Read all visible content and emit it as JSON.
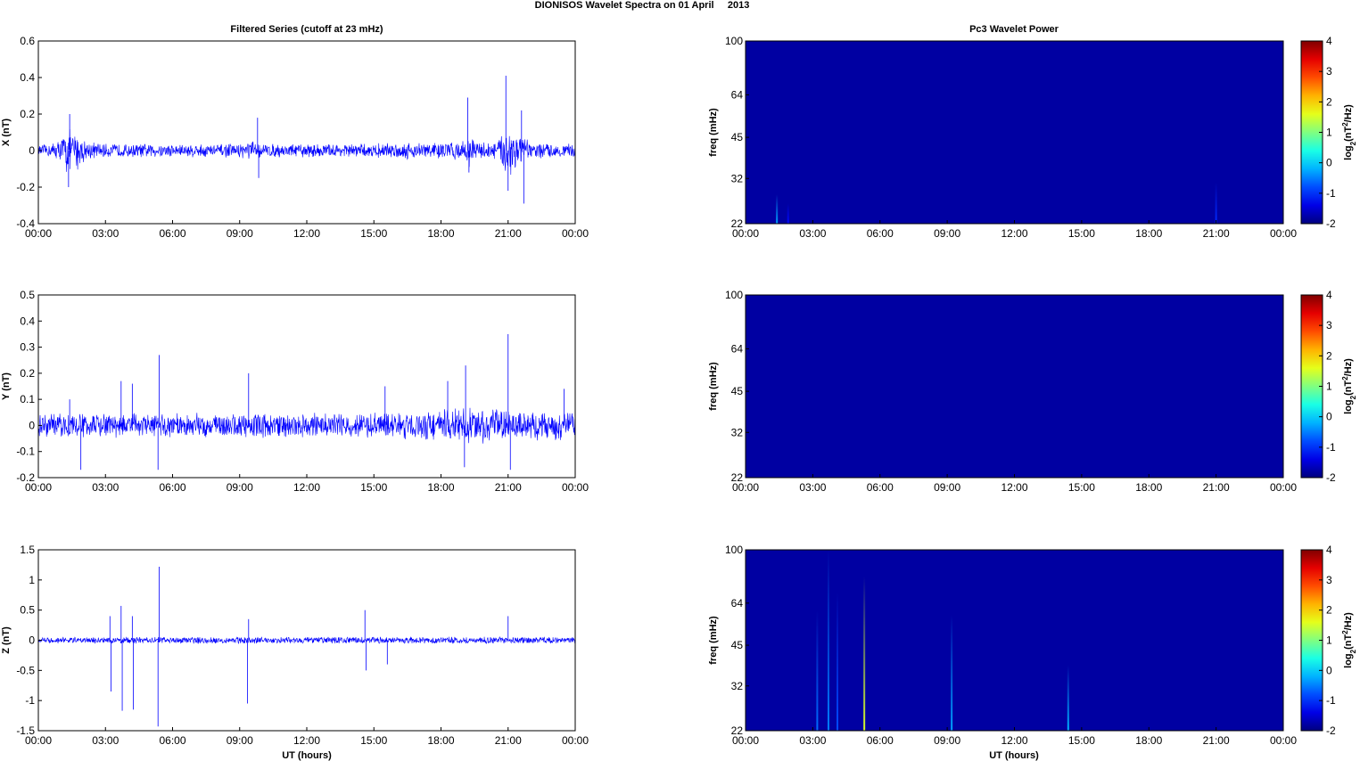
{
  "figure": {
    "title": "DIONISOS Wavelet Spectra on 01 April     2013",
    "left_column_title": "Filtered Series (cutoff at 23 mHz)",
    "right_column_title": "Pc3 Wavelet Power",
    "x_axis_label": "UT (hours)"
  },
  "colors": {
    "series_line": "#0000ff",
    "spectrogram_background": "#00008f",
    "axis": "#000000"
  },
  "chart_data": [
    {
      "type": "line",
      "panel": "x-series",
      "ylabel": "X (nT)",
      "ylim": [
        -0.4,
        0.6
      ],
      "yticks": [
        "-0.4",
        "-0.2",
        "0",
        "0.2",
        "0.4",
        "0.6"
      ],
      "xticks": [
        "00:00",
        "03:00",
        "06:00",
        "09:00",
        "12:00",
        "15:00",
        "18:00",
        "21:00",
        "00:00"
      ],
      "xlim_hours": [
        0,
        24
      ],
      "grid": false,
      "envelope": {
        "x_hours": [
          0,
          0.5,
          1,
          1.3,
          1.5,
          1.8,
          2,
          2.5,
          3,
          4,
          5,
          6,
          7,
          8,
          9,
          9.5,
          10,
          11,
          12,
          13,
          14,
          15,
          16,
          17,
          18,
          19,
          19.2,
          19.5,
          20,
          20.5,
          21,
          21.2,
          21.5,
          22,
          23,
          24
        ],
        "amplitude_nT": [
          0.03,
          0.04,
          0.07,
          0.15,
          0.1,
          0.12,
          0.07,
          0.05,
          0.04,
          0.04,
          0.04,
          0.04,
          0.04,
          0.04,
          0.04,
          0.06,
          0.04,
          0.04,
          0.04,
          0.04,
          0.04,
          0.04,
          0.05,
          0.05,
          0.05,
          0.06,
          0.1,
          0.06,
          0.05,
          0.06,
          0.15,
          0.2,
          0.1,
          0.05,
          0.04,
          0.04
        ]
      },
      "spikes": [
        {
          "x_hours": 1.4,
          "y_nT": 0.2
        },
        {
          "x_hours": 1.35,
          "y_nT": -0.2
        },
        {
          "x_hours": 9.8,
          "y_nT": 0.18
        },
        {
          "x_hours": 9.85,
          "y_nT": -0.15
        },
        {
          "x_hours": 19.2,
          "y_nT": 0.29
        },
        {
          "x_hours": 19.25,
          "y_nT": -0.12
        },
        {
          "x_hours": 20.9,
          "y_nT": 0.41
        },
        {
          "x_hours": 21.0,
          "y_nT": -0.22
        },
        {
          "x_hours": 21.6,
          "y_nT": 0.22
        },
        {
          "x_hours": 21.7,
          "y_nT": -0.29
        }
      ]
    },
    {
      "type": "line",
      "panel": "y-series",
      "ylabel": "Y (nT)",
      "ylim": [
        -0.2,
        0.5
      ],
      "yticks": [
        "-0.2",
        "-0.1",
        "0",
        "0.1",
        "0.2",
        "0.3",
        "0.4",
        "0.5"
      ],
      "xticks": [
        "00:00",
        "03:00",
        "06:00",
        "09:00",
        "12:00",
        "15:00",
        "18:00",
        "21:00",
        "00:00"
      ],
      "xlim_hours": [
        0,
        24
      ],
      "grid": false,
      "envelope": {
        "x_hours": [
          0,
          1,
          2,
          3,
          4,
          5,
          6,
          7,
          8,
          9,
          10,
          11,
          12,
          13,
          14,
          15,
          16,
          17,
          18,
          19,
          20,
          21,
          22,
          23,
          24
        ],
        "amplitude_nT": [
          0.045,
          0.05,
          0.05,
          0.05,
          0.05,
          0.05,
          0.05,
          0.05,
          0.05,
          0.05,
          0.05,
          0.05,
          0.05,
          0.05,
          0.05,
          0.05,
          0.055,
          0.06,
          0.065,
          0.07,
          0.07,
          0.065,
          0.06,
          0.06,
          0.06
        ]
      },
      "spikes": [
        {
          "x_hours": 1.4,
          "y_nT": 0.1
        },
        {
          "x_hours": 1.9,
          "y_nT": -0.17
        },
        {
          "x_hours": 3.7,
          "y_nT": 0.17
        },
        {
          "x_hours": 4.2,
          "y_nT": 0.16
        },
        {
          "x_hours": 5.4,
          "y_nT": 0.27
        },
        {
          "x_hours": 5.35,
          "y_nT": -0.17
        },
        {
          "x_hours": 9.4,
          "y_nT": 0.2
        },
        {
          "x_hours": 15.5,
          "y_nT": 0.15
        },
        {
          "x_hours": 18.3,
          "y_nT": 0.17
        },
        {
          "x_hours": 19.1,
          "y_nT": 0.23
        },
        {
          "x_hours": 19.05,
          "y_nT": -0.16
        },
        {
          "x_hours": 21.0,
          "y_nT": 0.35
        },
        {
          "x_hours": 21.1,
          "y_nT": -0.17
        },
        {
          "x_hours": 23.5,
          "y_nT": 0.14
        }
      ]
    },
    {
      "type": "line",
      "panel": "z-series",
      "ylabel": "Z (nT)",
      "ylim": [
        -1.5,
        1.5
      ],
      "yticks": [
        "-1.5",
        "-1",
        "-0.5",
        "0",
        "0.5",
        "1",
        "1.5"
      ],
      "xticks": [
        "00:00",
        "03:00",
        "06:00",
        "09:00",
        "12:00",
        "15:00",
        "18:00",
        "21:00",
        "00:00"
      ],
      "xlim_hours": [
        0,
        24
      ],
      "xlabel": "UT (hours)",
      "grid": false,
      "envelope": {
        "x_hours": [
          0,
          3,
          6,
          9,
          12,
          15,
          18,
          21,
          24
        ],
        "amplitude_nT": [
          0.05,
          0.06,
          0.06,
          0.06,
          0.06,
          0.06,
          0.06,
          0.06,
          0.06
        ]
      },
      "spikes": [
        {
          "x_hours": 3.2,
          "y_nT": 0.4
        },
        {
          "x_hours": 3.25,
          "y_nT": -0.85
        },
        {
          "x_hours": 3.7,
          "y_nT": 0.57
        },
        {
          "x_hours": 3.75,
          "y_nT": -1.17
        },
        {
          "x_hours": 4.2,
          "y_nT": 0.4
        },
        {
          "x_hours": 4.25,
          "y_nT": -1.15
        },
        {
          "x_hours": 5.4,
          "y_nT": 1.22
        },
        {
          "x_hours": 5.35,
          "y_nT": -1.43
        },
        {
          "x_hours": 9.4,
          "y_nT": 0.35
        },
        {
          "x_hours": 9.35,
          "y_nT": -1.05
        },
        {
          "x_hours": 14.6,
          "y_nT": 0.5
        },
        {
          "x_hours": 14.65,
          "y_nT": -0.5
        },
        {
          "x_hours": 15.6,
          "y_nT": -0.4
        },
        {
          "x_hours": 21.0,
          "y_nT": 0.4
        }
      ]
    },
    {
      "type": "heatmap",
      "panel": "x-power",
      "ylabel": "freq (mHz)",
      "yscale": "log",
      "ylim": [
        22,
        100
      ],
      "yticks": [
        "22",
        "32",
        "45",
        "64",
        "100"
      ],
      "xticks": [
        "00:00",
        "03:00",
        "06:00",
        "09:00",
        "12:00",
        "15:00",
        "18:00",
        "21:00",
        "00:00"
      ],
      "xlim_hours": [
        0,
        24
      ],
      "colorbar": {
        "label_base": "log",
        "label_sub": "2",
        "label_mid": "(nT",
        "label_sup": "2",
        "label_end": "/Hz)",
        "range": [
          -2,
          4
        ],
        "ticks": [
          "-2",
          "-1",
          "0",
          "1",
          "2",
          "3",
          "4"
        ],
        "colormap": "jet"
      },
      "background_log2_power": -1.8,
      "streaks": [
        {
          "x_hours": 1.4,
          "fmax_mHz": 28,
          "log2_power": -0.3
        },
        {
          "x_hours": 1.9,
          "fmax_mHz": 26,
          "log2_power": -1.2
        },
        {
          "x_hours": 21.0,
          "fmax_mHz": 31,
          "log2_power": -1.0
        }
      ]
    },
    {
      "type": "heatmap",
      "panel": "y-power",
      "ylabel": "freq (mHz)",
      "yscale": "log",
      "ylim": [
        22,
        100
      ],
      "yticks": [
        "22",
        "32",
        "45",
        "64",
        "100"
      ],
      "xticks": [
        "00:00",
        "03:00",
        "06:00",
        "09:00",
        "12:00",
        "15:00",
        "18:00",
        "21:00",
        "00:00"
      ],
      "xlim_hours": [
        0,
        24
      ],
      "colorbar": {
        "label_base": "log",
        "label_sub": "2",
        "label_mid": "(nT",
        "label_sup": "2",
        "label_end": "/Hz)",
        "range": [
          -2,
          4
        ],
        "ticks": [
          "-2",
          "-1",
          "0",
          "1",
          "2",
          "3",
          "4"
        ],
        "colormap": "jet"
      },
      "background_log2_power": -1.8,
      "streaks": []
    },
    {
      "type": "heatmap",
      "panel": "z-power",
      "ylabel": "freq (mHz)",
      "yscale": "log",
      "ylim": [
        22,
        100
      ],
      "yticks": [
        "22",
        "32",
        "45",
        "64",
        "100"
      ],
      "xticks": [
        "00:00",
        "03:00",
        "06:00",
        "09:00",
        "12:00",
        "15:00",
        "18:00",
        "21:00",
        "00:00"
      ],
      "xlim_hours": [
        0,
        24
      ],
      "xlabel": "UT (hours)",
      "colorbar": {
        "label_base": "log",
        "label_sub": "2",
        "label_mid": "(nT",
        "label_sup": "2",
        "label_end": "/Hz)",
        "range": [
          -2,
          4
        ],
        "ticks": [
          "-2",
          "-1",
          "0",
          "1",
          "2",
          "3",
          "4"
        ],
        "colormap": "jet"
      },
      "background_log2_power": -1.8,
      "streaks": [
        {
          "x_hours": 3.2,
          "fmax_mHz": 60,
          "log2_power": -0.6
        },
        {
          "x_hours": 3.7,
          "fmax_mHz": 100,
          "log2_power": -0.5
        },
        {
          "x_hours": 4.1,
          "fmax_mHz": 70,
          "log2_power": -0.8
        },
        {
          "x_hours": 5.3,
          "fmax_mHz": 80,
          "log2_power": 1.5
        },
        {
          "x_hours": 9.2,
          "fmax_mHz": 58,
          "log2_power": -0.3
        },
        {
          "x_hours": 14.4,
          "fmax_mHz": 38,
          "log2_power": -0.2
        }
      ]
    }
  ]
}
